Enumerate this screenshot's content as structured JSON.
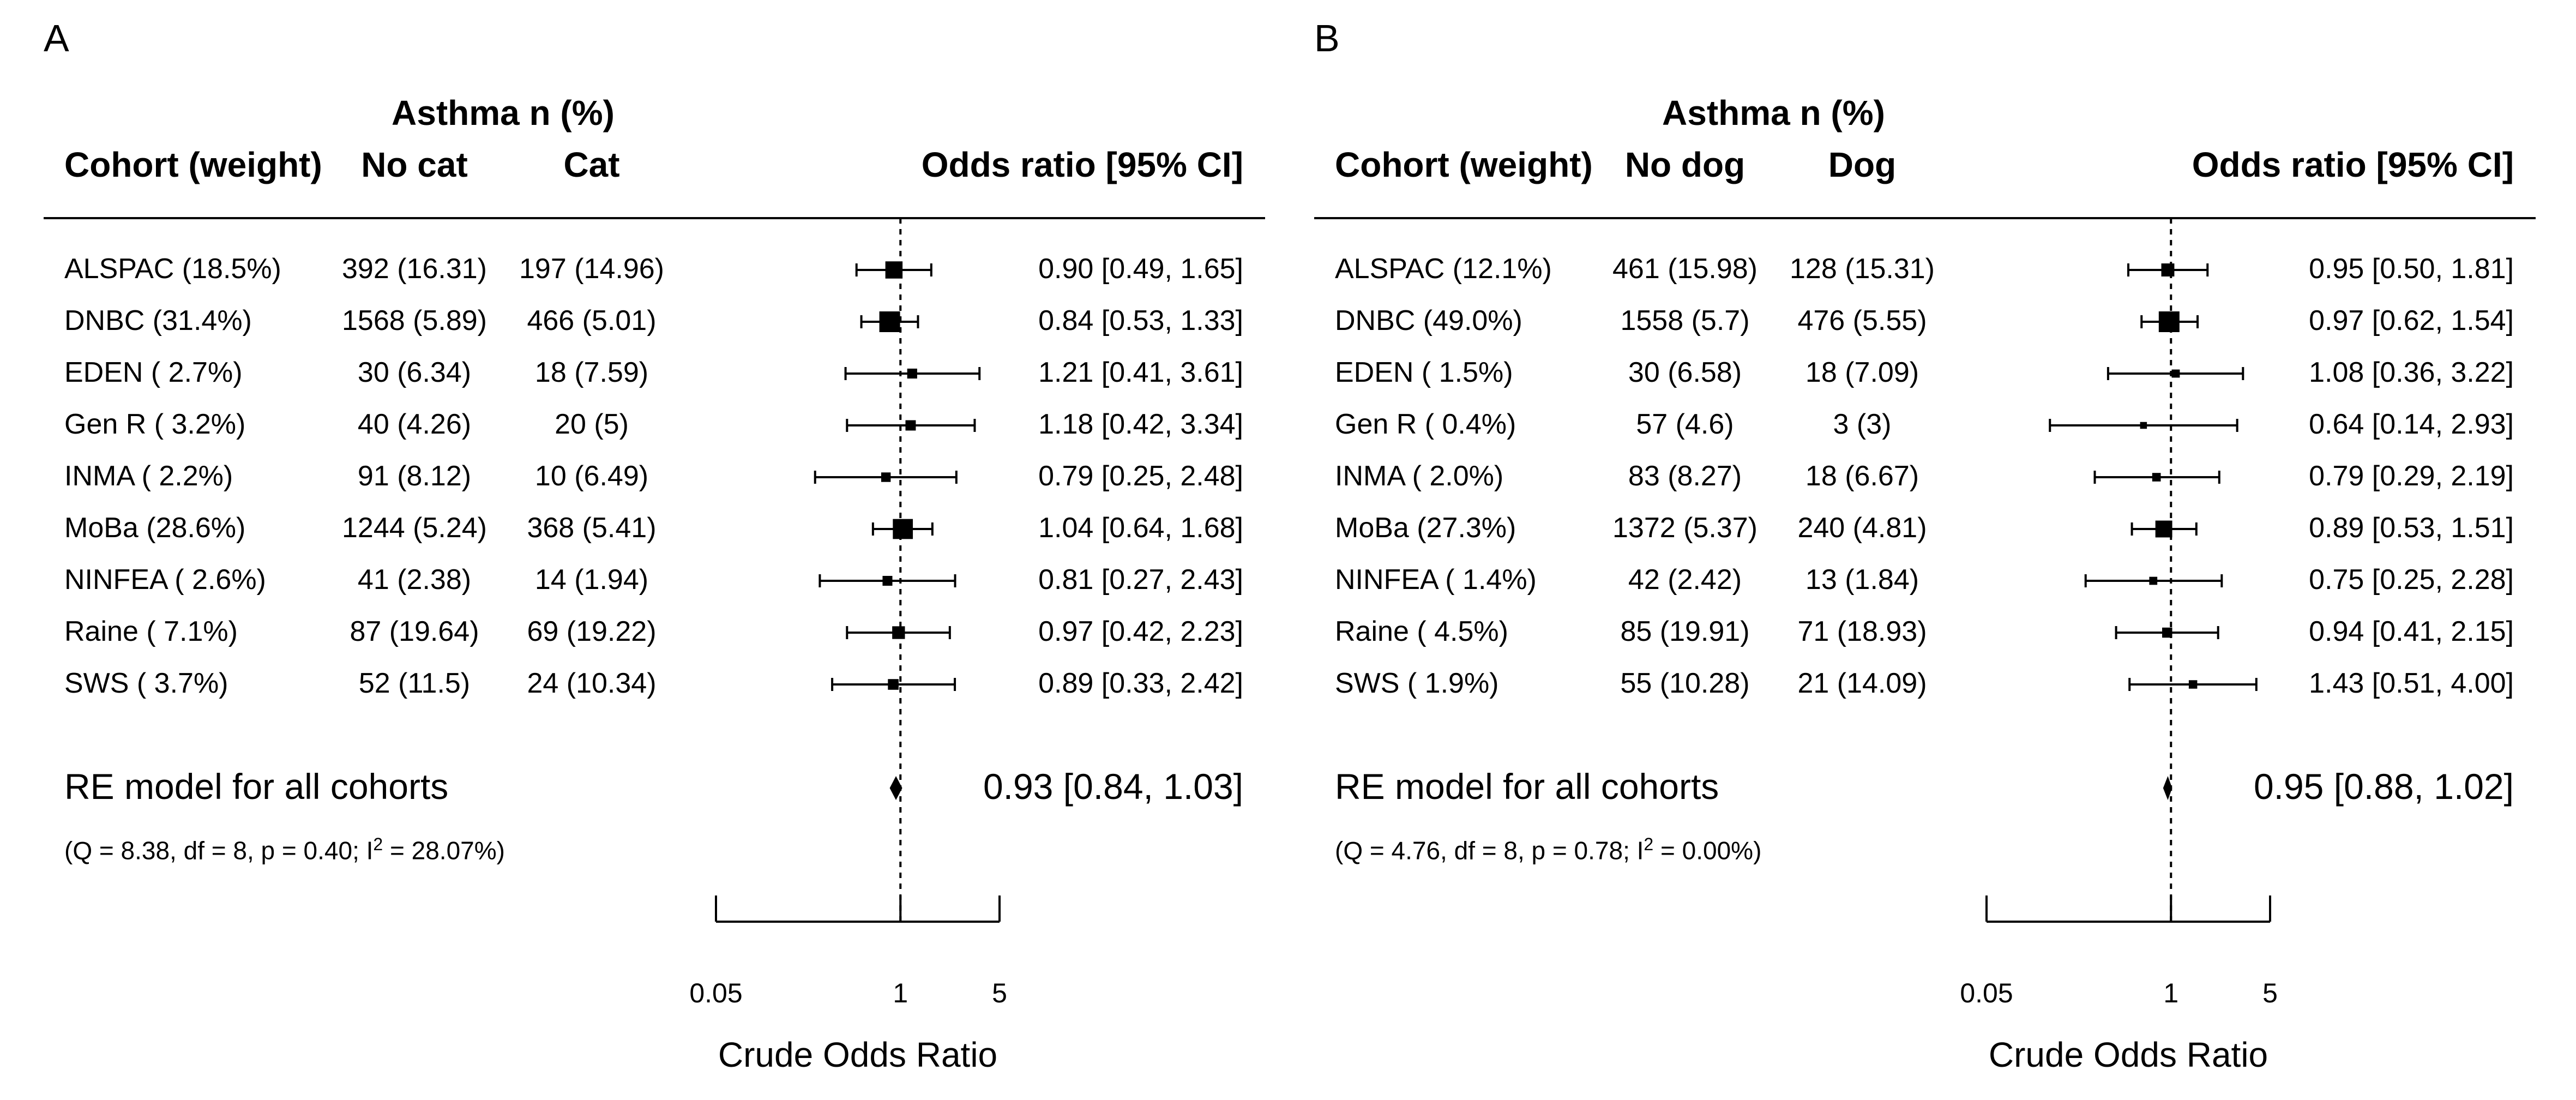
{
  "chart_data": [
    {
      "type": "forest",
      "panel_label": "A",
      "group_header": "Asthma n (%)",
      "columns": {
        "cohort": "Cohort (weight)",
        "no_exposure": "No cat",
        "exposure": "Cat",
        "or": "Odds ratio [95% CI]"
      },
      "rows": [
        {
          "label": "ALSPAC (18.5%)",
          "weight": 18.5,
          "no": "392 (16.31)",
          "yes": "197 (14.96)",
          "or": 0.9,
          "lo": 0.49,
          "hi": 1.65,
          "or_text": "0.90 [0.49, 1.65]"
        },
        {
          "label": "DNBC (31.4%)",
          "weight": 31.4,
          "no": "1568 (5.89)",
          "yes": "466 (5.01)",
          "or": 0.84,
          "lo": 0.53,
          "hi": 1.33,
          "or_text": "0.84 [0.53, 1.33]"
        },
        {
          "label": "EDEN ( 2.7%)",
          "weight": 2.7,
          "no": "30 (6.34)",
          "yes": "18 (7.59)",
          "or": 1.21,
          "lo": 0.41,
          "hi": 3.61,
          "or_text": "1.21 [0.41, 3.61]"
        },
        {
          "label": "Gen R ( 3.2%)",
          "weight": 3.2,
          "no": "40 (4.26)",
          "yes": "20 (5)",
          "or": 1.18,
          "lo": 0.42,
          "hi": 3.34,
          "or_text": "1.18 [0.42, 3.34]"
        },
        {
          "label": "INMA ( 2.2%)",
          "weight": 2.2,
          "no": "91 (8.12)",
          "yes": "10 (6.49)",
          "or": 0.79,
          "lo": 0.25,
          "hi": 2.48,
          "or_text": "0.79 [0.25, 2.48]"
        },
        {
          "label": "MoBa (28.6%)",
          "weight": 28.6,
          "no": "1244 (5.24)",
          "yes": "368 (5.41)",
          "or": 1.04,
          "lo": 0.64,
          "hi": 1.68,
          "or_text": "1.04 [0.64, 1.68]"
        },
        {
          "label": "NINFEA ( 2.6%)",
          "weight": 2.6,
          "no": "41 (2.38)",
          "yes": "14 (1.94)",
          "or": 0.81,
          "lo": 0.27,
          "hi": 2.43,
          "or_text": "0.81 [0.27, 2.43]"
        },
        {
          "label": "Raine ( 7.1%)",
          "weight": 7.1,
          "no": "87 (19.64)",
          "yes": "69 (19.22)",
          "or": 0.97,
          "lo": 0.42,
          "hi": 2.23,
          "or_text": "0.97 [0.42, 2.23]"
        },
        {
          "label": "SWS ( 3.7%)",
          "weight": 3.7,
          "no": "52 (11.5)",
          "yes": "24 (10.34)",
          "or": 0.89,
          "lo": 0.33,
          "hi": 2.42,
          "or_text": "0.89 [0.33, 2.42]"
        }
      ],
      "summary": {
        "label": "RE model for all cohorts",
        "or": 0.93,
        "lo": 0.84,
        "hi": 1.03,
        "or_text": "0.93 [0.84, 1.03]"
      },
      "heterogeneity_text": "(Q = 8.38, df = 8, p = 0.40; I",
      "heterogeneity_sup": "2",
      "heterogeneity_tail": " = 28.07%)",
      "x_scale": "log",
      "xlim": [
        0.05,
        5
      ],
      "x_ticks": [
        0.05,
        1,
        5
      ],
      "x_tick_labels": [
        "0.05",
        "1",
        "5"
      ],
      "reference_line": 1,
      "xlabel": "Crude Odds Ratio"
    },
    {
      "type": "forest",
      "panel_label": "B",
      "group_header": "Asthma n (%)",
      "columns": {
        "cohort": "Cohort (weight)",
        "no_exposure": "No dog",
        "exposure": "Dog",
        "or": "Odds ratio [95% CI]"
      },
      "rows": [
        {
          "label": "ALSPAC (12.1%)",
          "weight": 12.1,
          "no": "461 (15.98)",
          "yes": "128 (15.31)",
          "or": 0.95,
          "lo": 0.5,
          "hi": 1.81,
          "or_text": "0.95 [0.50, 1.81]"
        },
        {
          "label": "DNBC (49.0%)",
          "weight": 49.0,
          "no": "1558 (5.7)",
          "yes": "476 (5.55)",
          "or": 0.97,
          "lo": 0.62,
          "hi": 1.54,
          "or_text": "0.97 [0.62, 1.54]"
        },
        {
          "label": "EDEN ( 1.5%)",
          "weight": 1.5,
          "no": "30 (6.58)",
          "yes": "18 (7.09)",
          "or": 1.08,
          "lo": 0.36,
          "hi": 3.22,
          "or_text": "1.08 [0.36, 3.22]"
        },
        {
          "label": "Gen R ( 0.4%)",
          "weight": 0.4,
          "no": "57 (4.6)",
          "yes": "3 (3)",
          "or": 0.64,
          "lo": 0.14,
          "hi": 2.93,
          "or_text": "0.64 [0.14, 2.93]"
        },
        {
          "label": "INMA ( 2.0%)",
          "weight": 2.0,
          "no": "83 (8.27)",
          "yes": "18 (6.67)",
          "or": 0.79,
          "lo": 0.29,
          "hi": 2.19,
          "or_text": "0.79 [0.29, 2.19]"
        },
        {
          "label": "MoBa (27.3%)",
          "weight": 27.3,
          "no": "1372 (5.37)",
          "yes": "240 (4.81)",
          "or": 0.89,
          "lo": 0.53,
          "hi": 1.51,
          "or_text": "0.89 [0.53, 1.51]"
        },
        {
          "label": "NINFEA ( 1.4%)",
          "weight": 1.4,
          "no": "42 (2.42)",
          "yes": "13 (1.84)",
          "or": 0.75,
          "lo": 0.25,
          "hi": 2.28,
          "or_text": "0.75 [0.25, 2.28]"
        },
        {
          "label": "Raine ( 4.5%)",
          "weight": 4.5,
          "no": "85 (19.91)",
          "yes": "71 (18.93)",
          "or": 0.94,
          "lo": 0.41,
          "hi": 2.15,
          "or_text": "0.94 [0.41, 2.15]"
        },
        {
          "label": "SWS ( 1.9%)",
          "weight": 1.9,
          "no": "55 (10.28)",
          "yes": "21 (14.09)",
          "or": 1.43,
          "lo": 0.51,
          "hi": 4.0,
          "or_text": "1.43 [0.51, 4.00]"
        }
      ],
      "summary": {
        "label": "RE model for all cohorts",
        "or": 0.95,
        "lo": 0.88,
        "hi": 1.02,
        "or_text": "0.95 [0.88, 1.02]"
      },
      "heterogeneity_text": "(Q = 4.76, df = 8, p = 0.78; I",
      "heterogeneity_sup": "2",
      "heterogeneity_tail": " = 0.00%)",
      "x_scale": "log",
      "xlim": [
        0.05,
        5
      ],
      "x_ticks": [
        0.05,
        1,
        5
      ],
      "x_tick_labels": [
        "0.05",
        "1",
        "5"
      ],
      "reference_line": 1,
      "xlabel": "Crude Odds Ratio"
    }
  ]
}
